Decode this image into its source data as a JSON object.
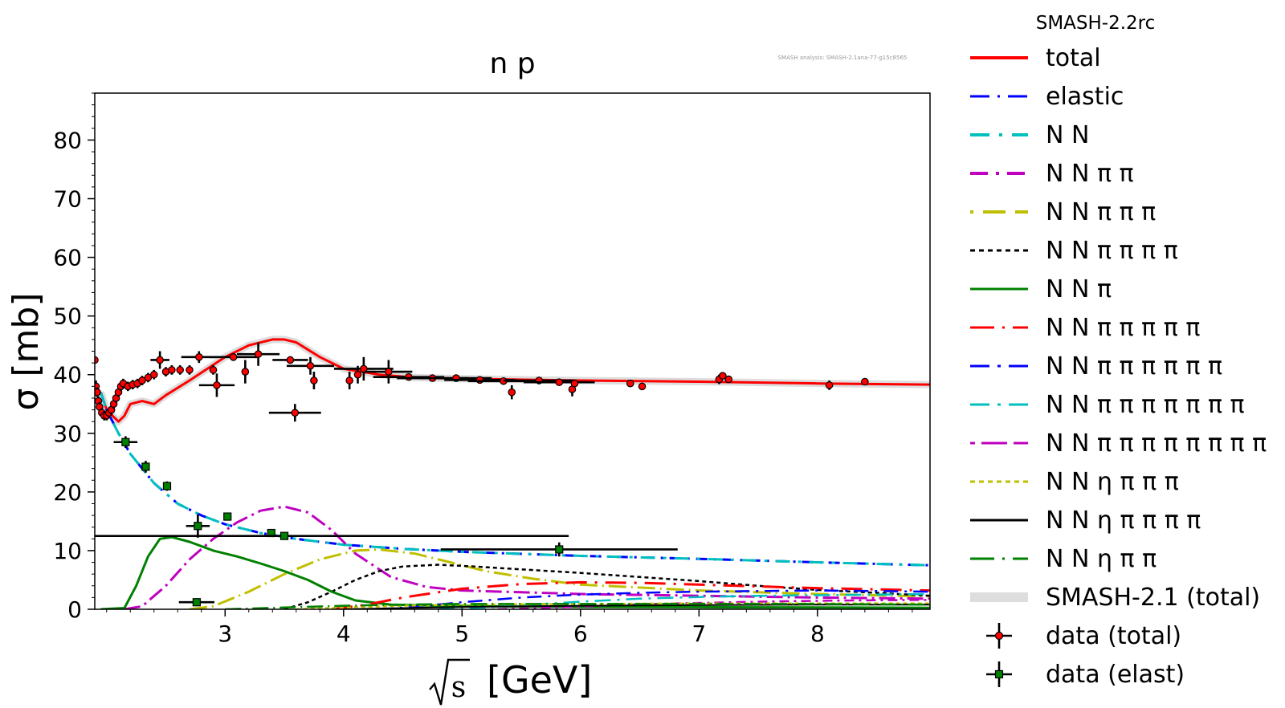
{
  "chart_data": {
    "type": "line",
    "title": "n p",
    "watermark": "SMASH analysis: SMASH-2.1ana-77-g15c8565",
    "legend_title": "SMASH-2.2rc",
    "xlabel": "√s [GeV]",
    "xlabel_sqrt": "s",
    "xlabel_unit": "[GeV]",
    "ylabel": "σ [mb]",
    "xlim": [
      1.9,
      8.95
    ],
    "ylim": [
      0,
      88
    ],
    "xticks": [
      3,
      4,
      5,
      6,
      7,
      8
    ],
    "yticks": [
      0,
      10,
      20,
      30,
      40,
      50,
      60,
      70,
      80
    ],
    "legend_position": "outside-right",
    "series": [
      {
        "name": "total",
        "color": "#ff0000",
        "dash": "",
        "width": 3,
        "x": [
          1.95,
          2.0,
          2.05,
          2.1,
          2.15,
          2.2,
          2.3,
          2.4,
          2.5,
          2.7,
          3.0,
          3.2,
          3.4,
          3.5,
          3.6,
          3.8,
          4.0,
          4.3,
          4.6,
          5.0,
          6.0,
          7.0,
          8.0,
          8.95
        ],
        "y": [
          37,
          34,
          33,
          32,
          33,
          35,
          35.5,
          35,
          36.5,
          39,
          43,
          45,
          46,
          46,
          45.5,
          43,
          41,
          40,
          39.5,
          39.3,
          39,
          38.8,
          38.5,
          38.3
        ]
      },
      {
        "name": "elastic",
        "color": "#0000ff",
        "dash": "14,8,3,8",
        "width": 3,
        "x": [
          1.95,
          2.0,
          2.1,
          2.2,
          2.4,
          2.6,
          2.8,
          3.0,
          3.3,
          3.6,
          4.0,
          4.5,
          5.0,
          6.0,
          7.0,
          8.0,
          8.95
        ],
        "y": [
          37,
          34,
          30,
          26.5,
          21.5,
          18,
          16,
          14.5,
          13,
          12,
          11,
          10.3,
          9.8,
          9.1,
          8.6,
          8.0,
          7.5
        ]
      },
      {
        "name": "N N",
        "color": "#00bfbf",
        "dash": "18,10,4,10",
        "width": 3,
        "x": [
          1.95,
          2.0,
          2.1,
          2.2,
          2.4,
          2.6,
          2.8,
          3.0,
          3.3,
          3.6,
          4.0,
          4.5,
          5.0,
          6.0,
          7.0,
          8.0,
          8.95
        ],
        "y": [
          37,
          34,
          30,
          26.5,
          21.5,
          18,
          16,
          14.5,
          13,
          12,
          11,
          10.3,
          9.8,
          9.1,
          8.6,
          8.0,
          7.5
        ]
      },
      {
        "name": "N N π π",
        "color": "#bf00bf",
        "dash": "20,6,3,6",
        "width": 3,
        "x": [
          2.15,
          2.3,
          2.5,
          2.7,
          2.9,
          3.1,
          3.3,
          3.5,
          3.7,
          3.9,
          4.1,
          4.4,
          4.7,
          5.0,
          5.5,
          6.0,
          7.0,
          8.0,
          8.95
        ],
        "y": [
          0,
          0.5,
          4,
          8.5,
          12,
          14.8,
          16.8,
          17.5,
          16.5,
          13.5,
          9.5,
          5.5,
          3.8,
          3.2,
          2.9,
          2.6,
          2.3,
          2.0,
          1.8
        ]
      },
      {
        "name": "N N π π π",
        "color": "#bfbf00",
        "dash": "22,6,2,6",
        "width": 3,
        "x": [
          2.7,
          2.9,
          3.2,
          3.5,
          3.8,
          4.1,
          4.3,
          4.6,
          4.9,
          5.2,
          5.6,
          6.0,
          7.0,
          8.0,
          8.95
        ],
        "y": [
          0,
          0.5,
          3,
          6,
          8.5,
          10,
          10.2,
          9.5,
          8,
          6.5,
          5.2,
          4.2,
          3.2,
          2.6,
          2.2
        ]
      },
      {
        "name": "N N π π π π",
        "color": "#000000",
        "dash": "5,4",
        "width": 2.5,
        "x": [
          3.5,
          3.7,
          3.9,
          4.1,
          4.3,
          4.5,
          4.8,
          5.1,
          5.5,
          6.0,
          6.5,
          7.0,
          7.5,
          8.0,
          8.5,
          8.95
        ],
        "y": [
          0,
          1.2,
          3,
          5,
          6.5,
          7.3,
          7.6,
          7.3,
          6.8,
          6.2,
          5.5,
          4.8,
          4.0,
          3.3,
          2.8,
          2.3
        ]
      },
      {
        "name": "N N π",
        "color": "#008000",
        "dash": "",
        "width": 3,
        "x": [
          1.95,
          2.15,
          2.25,
          2.35,
          2.45,
          2.55,
          2.7,
          2.9,
          3.1,
          3.3,
          3.5,
          3.7,
          3.9,
          4.1,
          4.4,
          4.8,
          5.2,
          6.0,
          7.0,
          8.0,
          8.95
        ],
        "y": [
          0,
          0.2,
          4,
          9,
          12,
          12.3,
          11.5,
          10,
          9,
          7.8,
          6.5,
          5,
          3,
          1.5,
          0.8,
          0.6,
          0.5,
          0.4,
          0.35,
          0.3,
          0.25
        ]
      },
      {
        "name": "N N π π π π π",
        "color": "#ff0000",
        "dash": "26,10,3,10",
        "width": 3,
        "x": [
          3.9,
          4.2,
          4.5,
          5.0,
          5.5,
          6.0,
          6.5,
          7.0,
          7.5,
          8.0,
          8.5,
          8.95
        ],
        "y": [
          0,
          0.8,
          2,
          3.5,
          4.3,
          4.6,
          4.5,
          4.2,
          3.9,
          3.6,
          3.4,
          3.2
        ]
      },
      {
        "name": "N N π π π π π π",
        "color": "#0000ff",
        "dash": "18,8,3,8",
        "width": 2.5,
        "x": [
          4.3,
          4.6,
          5.0,
          5.5,
          6.0,
          6.5,
          7.0,
          7.5,
          8.0,
          8.5,
          8.95
        ],
        "y": [
          0,
          0.4,
          1.2,
          2,
          2.5,
          2.8,
          3,
          3.1,
          3.2,
          3.1,
          3.0
        ]
      },
      {
        "name": "N N π π π π π π π",
        "color": "#00bfbf",
        "dash": "20,8,3,8",
        "width": 2.5,
        "x": [
          4.8,
          5.2,
          5.6,
          6.0,
          6.5,
          7.0,
          7.5,
          8.0,
          8.5,
          8.95
        ],
        "y": [
          0,
          0.3,
          0.8,
          1.3,
          1.8,
          2.1,
          2.3,
          2.4,
          2.5,
          2.6
        ]
      },
      {
        "name": "N N π π π π π π π π",
        "color": "#bf00bf",
        "dash": "12,6,3,6",
        "width": 2.5,
        "x": [
          5.3,
          5.8,
          6.3,
          6.8,
          7.3,
          7.8,
          8.3,
          8.95
        ],
        "y": [
          0,
          0.3,
          0.7,
          1.0,
          1.2,
          1.4,
          1.5,
          1.6
        ]
      },
      {
        "name": "N N η π π π",
        "color": "#bfbf00",
        "dash": "5,4",
        "width": 2.5,
        "x": [
          3.6,
          4.0,
          4.5,
          5.0,
          6.0,
          7.0,
          8.0,
          8.95
        ],
        "y": [
          0,
          0.3,
          0.6,
          0.8,
          0.9,
          1.0,
          1.0,
          1.0
        ]
      },
      {
        "name": "N N η π π π π",
        "color": "#000000",
        "dash": "",
        "width": 2,
        "x": [
          4.0,
          4.5,
          5.0,
          6.0,
          7.0,
          8.0,
          8.95
        ],
        "y": [
          0,
          0.2,
          0.4,
          0.6,
          0.7,
          0.8,
          0.8
        ]
      },
      {
        "name": "N N η π π",
        "color": "#008000",
        "dash": "20,6,2,6",
        "width": 2.5,
        "x": [
          3.0,
          3.5,
          4.0,
          4.5,
          5.0,
          6.0,
          7.0,
          8.0,
          8.95
        ],
        "y": [
          0,
          0.3,
          0.6,
          0.8,
          0.9,
          0.9,
          0.9,
          0.9,
          0.8
        ]
      },
      {
        "name": "SMASH-2.1 (total)",
        "color": "#dddddd",
        "dash": "",
        "width": 9,
        "x": [
          1.95,
          2.0,
          2.05,
          2.1,
          2.15,
          2.2,
          2.3,
          2.4,
          2.5,
          2.7,
          3.0,
          3.2,
          3.4,
          3.5,
          3.6,
          3.8,
          4.0,
          4.3,
          4.6,
          5.0,
          6.0,
          7.0,
          8.0,
          8.95
        ],
        "y": [
          37,
          34,
          33,
          32,
          33,
          35,
          35.5,
          35,
          36.5,
          39,
          43,
          45,
          46,
          46,
          45.5,
          43,
          41,
          40,
          39.5,
          39.3,
          39,
          38.8,
          38.5,
          38.3
        ]
      }
    ],
    "data_total": {
      "name": "data (total)",
      "color": "#ff0000",
      "points": [
        {
          "x": 1.9,
          "y": 42.5,
          "xerr": 0,
          "yerr": 0.5
        },
        {
          "x": 1.91,
          "y": 38.0,
          "xerr": 0,
          "yerr": 1.0
        },
        {
          "x": 1.92,
          "y": 37.0,
          "xerr": 0,
          "yerr": 0.8
        },
        {
          "x": 1.93,
          "y": 35.5,
          "xerr": 0,
          "yerr": 0.8
        },
        {
          "x": 1.94,
          "y": 34.5,
          "xerr": 0,
          "yerr": 0.8
        },
        {
          "x": 1.96,
          "y": 33.5,
          "xerr": 0,
          "yerr": 0.8
        },
        {
          "x": 1.98,
          "y": 33.0,
          "xerr": 0,
          "yerr": 0.8
        },
        {
          "x": 2.0,
          "y": 33.0,
          "xerr": 0,
          "yerr": 0.8
        },
        {
          "x": 2.02,
          "y": 33.5,
          "xerr": 0,
          "yerr": 0.8
        },
        {
          "x": 2.04,
          "y": 34.0,
          "xerr": 0,
          "yerr": 0.8
        },
        {
          "x": 2.06,
          "y": 35.0,
          "xerr": 0,
          "yerr": 0.8
        },
        {
          "x": 2.08,
          "y": 36.0,
          "xerr": 0,
          "yerr": 0.8
        },
        {
          "x": 2.1,
          "y": 37.0,
          "xerr": 0,
          "yerr": 0.8
        },
        {
          "x": 2.12,
          "y": 38.0,
          "xerr": 0,
          "yerr": 0.8
        },
        {
          "x": 2.14,
          "y": 38.5,
          "xerr": 0,
          "yerr": 0.8
        },
        {
          "x": 2.18,
          "y": 38.0,
          "xerr": 0,
          "yerr": 0.8
        },
        {
          "x": 2.22,
          "y": 38.3,
          "xerr": 0,
          "yerr": 0.8
        },
        {
          "x": 2.26,
          "y": 38.5,
          "xerr": 0,
          "yerr": 0.8
        },
        {
          "x": 2.3,
          "y": 39.0,
          "xerr": 0,
          "yerr": 0.8
        },
        {
          "x": 2.35,
          "y": 39.5,
          "xerr": 0,
          "yerr": 0.8
        },
        {
          "x": 2.4,
          "y": 40.0,
          "xerr": 0,
          "yerr": 0.8
        },
        {
          "x": 2.45,
          "y": 42.5,
          "xerr": 0.08,
          "yerr": 1.5
        },
        {
          "x": 2.5,
          "y": 40.5,
          "xerr": 0,
          "yerr": 0.8
        },
        {
          "x": 2.55,
          "y": 40.8,
          "xerr": 0,
          "yerr": 0.8
        },
        {
          "x": 2.62,
          "y": 40.8,
          "xerr": 0,
          "yerr": 0.8
        },
        {
          "x": 2.7,
          "y": 40.8,
          "xerr": 0,
          "yerr": 0.8
        },
        {
          "x": 2.78,
          "y": 43.0,
          "xerr": 0.15,
          "yerr": 1.0
        },
        {
          "x": 2.9,
          "y": 40.8,
          "xerr": 0,
          "yerr": 0.8
        },
        {
          "x": 2.93,
          "y": 38.2,
          "xerr": 0.15,
          "yerr": 2.0
        },
        {
          "x": 3.07,
          "y": 43.0,
          "xerr": 0.2,
          "yerr": 0.5
        },
        {
          "x": 3.17,
          "y": 40.5,
          "xerr": 0,
          "yerr": 2.0
        },
        {
          "x": 3.28,
          "y": 43.5,
          "xerr": 0.18,
          "yerr": 2.0
        },
        {
          "x": 3.55,
          "y": 42.5,
          "xerr": 0.15,
          "yerr": 0.5
        },
        {
          "x": 3.59,
          "y": 33.5,
          "xerr": 0.22,
          "yerr": 1.5
        },
        {
          "x": 3.72,
          "y": 41.5,
          "xerr": 0.2,
          "yerr": 1.5
        },
        {
          "x": 3.75,
          "y": 39.0,
          "xerr": 0,
          "yerr": 1.5
        },
        {
          "x": 4.05,
          "y": 39.0,
          "xerr": 0,
          "yerr": 1.5
        },
        {
          "x": 4.12,
          "y": 40.0,
          "xerr": 0,
          "yerr": 1.5
        },
        {
          "x": 4.17,
          "y": 41.0,
          "xerr": 0.25,
          "yerr": 2.0
        },
        {
          "x": 4.38,
          "y": 40.5,
          "xerr": 0.2,
          "yerr": 2.0
        },
        {
          "x": 4.55,
          "y": 39.6,
          "xerr": 0.3,
          "yerr": 0.5
        },
        {
          "x": 4.75,
          "y": 39.4,
          "xerr": 0.3,
          "yerr": 0.5
        },
        {
          "x": 4.95,
          "y": 39.4,
          "xerr": 0.3,
          "yerr": 0.5
        },
        {
          "x": 5.15,
          "y": 39.1,
          "xerr": 0.3,
          "yerr": 0.5
        },
        {
          "x": 5.35,
          "y": 38.9,
          "xerr": 0.3,
          "yerr": 0.5
        },
        {
          "x": 5.42,
          "y": 37.0,
          "xerr": 0,
          "yerr": 1.2
        },
        {
          "x": 5.65,
          "y": 39.0,
          "xerr": 0.3,
          "yerr": 0.5
        },
        {
          "x": 5.82,
          "y": 38.7,
          "xerr": 0.3,
          "yerr": 0.5
        },
        {
          "x": 5.93,
          "y": 37.5,
          "xerr": 0,
          "yerr": 1.2
        },
        {
          "x": 5.95,
          "y": 38.5,
          "xerr": 0,
          "yerr": 0.5
        },
        {
          "x": 6.42,
          "y": 38.5,
          "xerr": 0,
          "yerr": 0.5
        },
        {
          "x": 6.52,
          "y": 38.0,
          "xerr": 0,
          "yerr": 0.5
        },
        {
          "x": 7.17,
          "y": 39.2,
          "xerr": 0,
          "yerr": 0.8
        },
        {
          "x": 7.2,
          "y": 39.8,
          "xerr": 0,
          "yerr": 0.5
        },
        {
          "x": 7.25,
          "y": 39.2,
          "xerr": 0,
          "yerr": 0.5
        },
        {
          "x": 8.1,
          "y": 38.2,
          "xerr": 0,
          "yerr": 0.8
        },
        {
          "x": 8.4,
          "y": 38.8,
          "xerr": 0,
          "yerr": 0.5
        }
      ]
    },
    "data_elast": {
      "name": "data (elast)",
      "color": "#008000",
      "points": [
        {
          "x": 2.16,
          "y": 28.5,
          "xerr": 0.1,
          "yerr": 1.0
        },
        {
          "x": 2.33,
          "y": 24.3,
          "xerr": 0.02,
          "yerr": 1.0
        },
        {
          "x": 2.51,
          "y": 21.0,
          "xerr": 0.02,
          "yerr": 0.8
        },
        {
          "x": 2.77,
          "y": 14.2,
          "xerr": 0.1,
          "yerr": 2.0
        },
        {
          "x": 3.02,
          "y": 15.8,
          "xerr": 0,
          "yerr": 0.5
        },
        {
          "x": 3.39,
          "y": 13.0,
          "xerr": 0,
          "yerr": 0.5
        },
        {
          "x": 3.5,
          "y": 12.5,
          "xerr": 2.4,
          "yerr": 0.5
        },
        {
          "x": 2.76,
          "y": 1.2,
          "xerr": 0.15,
          "yerr": 0.3
        },
        {
          "x": 5.82,
          "y": 10.2,
          "xerr": 1.0,
          "yerr": 1.2
        }
      ]
    },
    "legend_items": [
      {
        "label": "total",
        "color": "#ff0000",
        "dash": "",
        "width": 4,
        "marker": "none"
      },
      {
        "label": "elastic",
        "color": "#0000ff",
        "dash": "24,10,3,10",
        "width": 3,
        "marker": "none"
      },
      {
        "label": "N N",
        "color": "#00bfbf",
        "dash": "24,12,4,12",
        "width": 4,
        "marker": "none"
      },
      {
        "label": "N N π π",
        "color": "#bf00bf",
        "dash": "22,10,4,10",
        "width": 4,
        "marker": "none"
      },
      {
        "label": "N N π π π",
        "color": "#bfbf00",
        "dash": "4,12,24,0",
        "width": 4,
        "marker": "none"
      },
      {
        "label": "N N π π π π",
        "color": "#000000",
        "dash": "6,5",
        "width": 3,
        "marker": "none"
      },
      {
        "label": "N N π",
        "color": "#008000",
        "dash": "",
        "width": 3,
        "marker": "none"
      },
      {
        "label": "N N π π π π π",
        "color": "#ff0000",
        "dash": "30,10,3,10",
        "width": 3,
        "marker": "none"
      },
      {
        "label": "N N π π π π π π",
        "color": "#0000ff",
        "dash": "24,10,4,10",
        "width": 3,
        "marker": "none"
      },
      {
        "label": "N N π π π π π π π",
        "color": "#00bfbf",
        "dash": "24,10,4,10",
        "width": 3,
        "marker": "none"
      },
      {
        "label": "N N π π π π π π π π",
        "color": "#bf00bf",
        "dash": "6,8,26,0",
        "width": 3,
        "marker": "none"
      },
      {
        "label": "N N η π π π",
        "color": "#bfbf00",
        "dash": "6,5",
        "width": 3,
        "marker": "none"
      },
      {
        "label": "N N η π π π π",
        "color": "#000000",
        "dash": "",
        "width": 3,
        "marker": "none"
      },
      {
        "label": "N N η π π",
        "color": "#008000",
        "dash": "30,10,3,10",
        "width": 3,
        "marker": "none"
      },
      {
        "label": "SMASH-2.1 (total)",
        "color": "#dddddd",
        "dash": "",
        "width": 12,
        "marker": "none"
      },
      {
        "label": "data (total)",
        "color": "#000000",
        "dash": "",
        "width": 0,
        "marker": "circle-red"
      },
      {
        "label": "data (elast)",
        "color": "#000000",
        "dash": "",
        "width": 0,
        "marker": "square-green"
      }
    ]
  }
}
